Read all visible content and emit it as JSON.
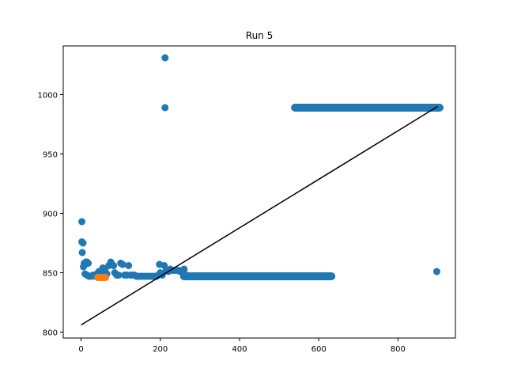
{
  "chart_data": {
    "type": "scatter",
    "title": "Run 5",
    "xlabel": "",
    "ylabel": "",
    "xlim": [
      -45,
      945
    ],
    "ylim": [
      795,
      1041
    ],
    "xticks": [
      0,
      200,
      400,
      600,
      800
    ],
    "yticks": [
      800,
      850,
      900,
      950,
      1000
    ],
    "grid": false,
    "legend": "none",
    "colors": {
      "series_a": "#1f77b4",
      "series_b": "#ff7f0e",
      "line": "#000000"
    },
    "series": [
      {
        "points": [
          [
            2,
            893
          ],
          [
            2,
            876
          ],
          [
            5,
            875
          ],
          [
            3,
            867
          ],
          [
            8,
            858
          ],
          [
            6,
            855
          ],
          [
            10,
            857
          ],
          [
            12,
            859
          ],
          [
            15,
            859
          ],
          [
            18,
            858
          ],
          [
            10,
            849
          ],
          [
            15,
            848
          ],
          [
            20,
            847
          ],
          [
            25,
            847
          ],
          [
            30,
            848
          ],
          [
            35,
            847
          ],
          [
            40,
            849
          ],
          [
            45,
            851
          ],
          [
            50,
            851
          ],
          [
            55,
            854
          ],
          [
            60,
            852
          ],
          [
            65,
            849
          ],
          [
            70,
            856
          ],
          [
            75,
            859
          ],
          [
            78,
            857
          ],
          [
            82,
            856
          ],
          [
            85,
            850
          ],
          [
            90,
            848
          ],
          [
            95,
            848
          ],
          [
            100,
            858
          ],
          [
            105,
            857
          ],
          [
            110,
            848
          ],
          [
            115,
            848
          ],
          [
            120,
            856
          ],
          [
            125,
            848
          ],
          [
            130,
            848
          ],
          [
            135,
            848
          ],
          [
            140,
            847
          ],
          [
            145,
            847
          ],
          [
            150,
            847
          ],
          [
            155,
            847
          ],
          [
            160,
            847
          ],
          [
            165,
            847
          ],
          [
            170,
            847
          ],
          [
            175,
            847
          ],
          [
            180,
            847
          ],
          [
            185,
            847
          ],
          [
            190,
            847
          ],
          [
            195,
            848
          ],
          [
            198,
            857
          ],
          [
            200,
            850
          ],
          [
            205,
            848
          ],
          [
            210,
            856
          ],
          [
            215,
            852
          ],
          [
            220,
            851
          ],
          [
            225,
            853
          ],
          [
            230,
            852
          ],
          [
            235,
            852
          ],
          [
            240,
            852
          ],
          [
            245,
            852
          ],
          [
            250,
            851
          ],
          [
            255,
            852
          ],
          [
            260,
            853
          ],
          [
            262,
            849
          ],
          [
            265,
            848
          ],
          [
            270,
            847
          ],
          [
            212,
            1031
          ],
          [
            212,
            989
          ],
          [
            898,
            851
          ]
        ],
        "line_segment": {
          "x": [
            260,
            632
          ],
          "y": 847
        },
        "flat_segment": {
          "x": [
            540,
            905
          ],
          "y": 989
        }
      },
      {
        "points": [
          [
            42,
            846
          ],
          [
            47,
            846
          ],
          [
            52,
            846
          ],
          [
            57,
            846
          ],
          [
            62,
            846
          ]
        ]
      }
    ],
    "fit_line": {
      "x": [
        0,
        900
      ],
      "y": [
        806,
        990
      ]
    }
  }
}
